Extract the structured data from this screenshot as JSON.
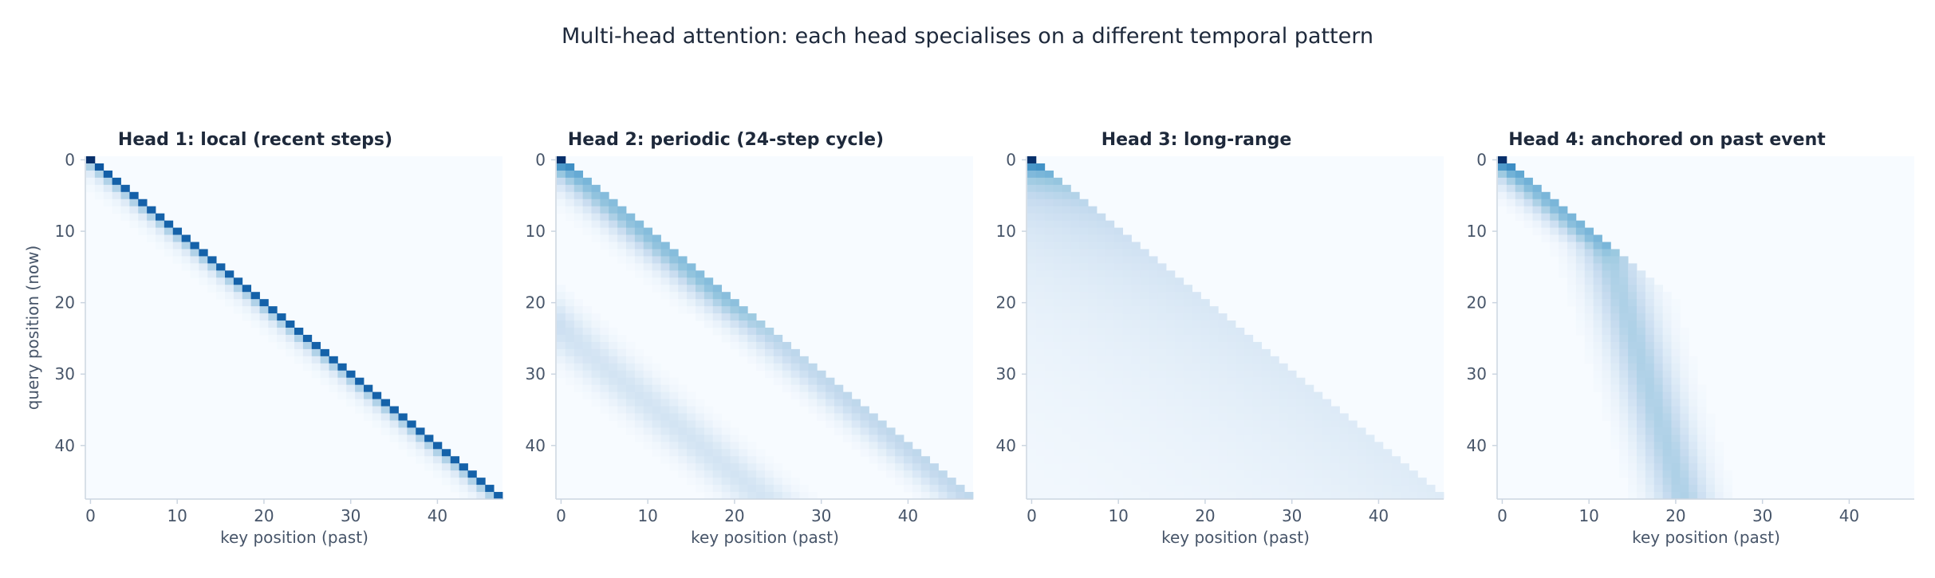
{
  "figure": {
    "title": "Multi-head attention: each head specialises on a different temporal pattern"
  },
  "colors": {
    "cmap": "Blues",
    "cmap_low": "#f7fbff",
    "cmap_high": "#08306b",
    "axis": "#cbd5e1",
    "tick_text": "#475569",
    "title_text": "#1e293b"
  },
  "chart_data": [
    {
      "type": "heatmap",
      "title": "Head 1: local (recent steps)",
      "pattern": "local",
      "n": 48,
      "xlabel": "key position (past)",
      "ylabel": "query position (now)",
      "xticks": [
        0,
        10,
        20,
        30,
        40
      ],
      "yticks": [
        0,
        10,
        20,
        30,
        40
      ],
      "xlim": [
        0,
        47
      ],
      "ylim": [
        47,
        0
      ],
      "causal": true
    },
    {
      "type": "heatmap",
      "title": "Head 2: periodic (24-step cycle)",
      "pattern": "periodic",
      "period": 24,
      "n": 48,
      "xlabel": "key position (past)",
      "ylabel": "",
      "xticks": [
        0,
        10,
        20,
        30,
        40
      ],
      "yticks": [
        0,
        10,
        20,
        30,
        40
      ],
      "xlim": [
        0,
        47
      ],
      "ylim": [
        47,
        0
      ],
      "causal": true
    },
    {
      "type": "heatmap",
      "title": "Head 3: long-range",
      "pattern": "long-range",
      "n": 48,
      "xlabel": "key position (past)",
      "ylabel": "",
      "xticks": [
        0,
        10,
        20,
        30,
        40
      ],
      "yticks": [
        0,
        10,
        20,
        30,
        40
      ],
      "xlim": [
        0,
        47
      ],
      "ylim": [
        47,
        0
      ],
      "causal": true
    },
    {
      "type": "heatmap",
      "title": "Head 4: anchored on past event",
      "pattern": "anchored",
      "anchor_key": 12,
      "n": 48,
      "xlabel": "key position (past)",
      "ylabel": "",
      "xticks": [
        0,
        10,
        20,
        30,
        40
      ],
      "yticks": [
        0,
        10,
        20,
        30,
        40
      ],
      "xlim": [
        0,
        47
      ],
      "ylim": [
        47,
        0
      ],
      "causal": true
    }
  ]
}
